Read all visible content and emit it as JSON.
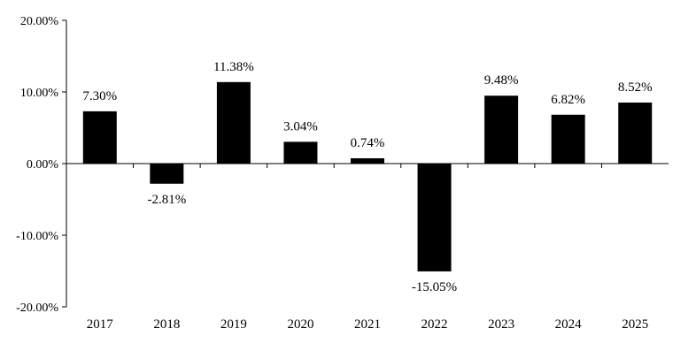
{
  "chart_data": {
    "type": "bar",
    "categories": [
      "2017",
      "2018",
      "2019",
      "2020",
      "2021",
      "2022",
      "2023",
      "2024",
      "2025"
    ],
    "values": [
      7.3,
      -2.81,
      11.38,
      3.04,
      0.74,
      -15.05,
      9.48,
      6.82,
      8.52
    ],
    "value_labels": [
      "7.30%",
      "-2.81%",
      "11.38%",
      "3.04%",
      "0.74%",
      "-15.05%",
      "9.48%",
      "6.82%",
      "8.52%"
    ],
    "yticks": [
      20,
      10,
      0,
      -10,
      -20
    ],
    "ytick_labels": [
      "20.00%",
      "10.00%",
      "0.00%",
      "-10.00%",
      "-20.00%"
    ],
    "ylim": [
      -20,
      20
    ],
    "bar_color": "#000000",
    "grid": false,
    "title": "",
    "xlabel": "",
    "ylabel": ""
  }
}
